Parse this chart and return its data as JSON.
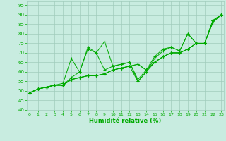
{
  "xlabel": "Humidité relative (%)",
  "xlim": [
    -0.3,
    23.3
  ],
  "ylim": [
    40,
    97
  ],
  "yticks": [
    40,
    45,
    50,
    55,
    60,
    65,
    70,
    75,
    80,
    85,
    90,
    95
  ],
  "xticks": [
    0,
    1,
    2,
    3,
    4,
    5,
    6,
    7,
    8,
    9,
    10,
    11,
    12,
    13,
    14,
    15,
    16,
    17,
    18,
    19,
    20,
    21,
    22,
    23
  ],
  "background_color": "#c8ece0",
  "grid_color": "#a0ccbc",
  "line_color": "#00aa00",
  "marker_color": "#007700",
  "series": [
    [
      49,
      51,
      52,
      53,
      54,
      67,
      60,
      73,
      70,
      76,
      63,
      64,
      65,
      56,
      61,
      68,
      72,
      73,
      71,
      80,
      75,
      75,
      87,
      90
    ],
    [
      49,
      51,
      52,
      53,
      53,
      57,
      60,
      72,
      70,
      61,
      63,
      64,
      65,
      55,
      60,
      67,
      71,
      73,
      71,
      80,
      75,
      75,
      87,
      90
    ],
    [
      49,
      51,
      52,
      53,
      53,
      56,
      57,
      58,
      58,
      59,
      61,
      62,
      63,
      55,
      60,
      65,
      68,
      70,
      70,
      72,
      75,
      75,
      86,
      90
    ],
    [
      49,
      51,
      52,
      53,
      53,
      56,
      57,
      58,
      58,
      59,
      61,
      62,
      63,
      64,
      61,
      65,
      68,
      70,
      70,
      72,
      75,
      75,
      86,
      90
    ],
    [
      49,
      51,
      52,
      53,
      53,
      56,
      57,
      58,
      58,
      59,
      61,
      62,
      63,
      64,
      61,
      65,
      68,
      70,
      70,
      72,
      75,
      75,
      87,
      90
    ]
  ]
}
